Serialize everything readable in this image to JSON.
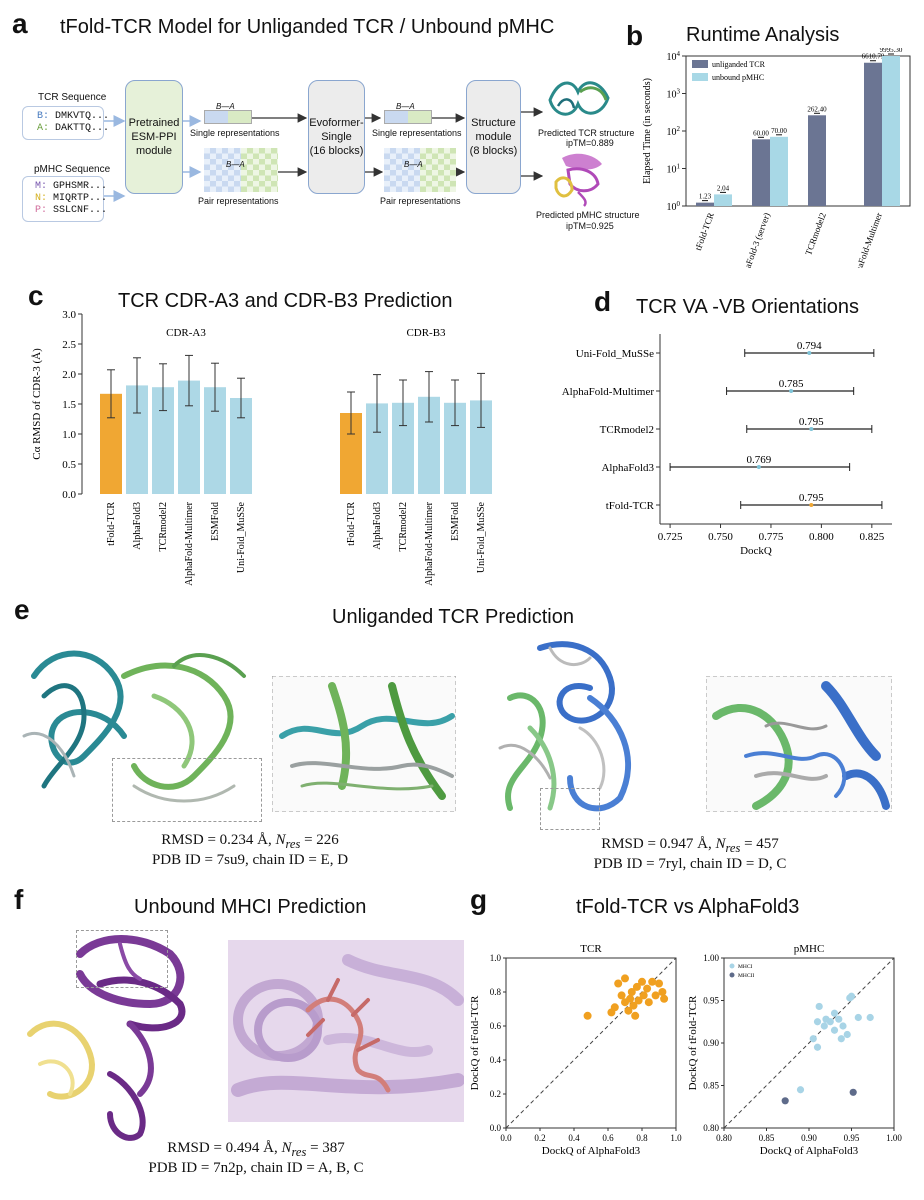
{
  "panels": {
    "a": {
      "letter": "a",
      "title": "tFold-TCR Model for Unliganded TCR / Unbound pMHC"
    },
    "b": {
      "letter": "b",
      "title": "Runtime Analysis"
    },
    "c": {
      "letter": "c",
      "title": "TCR CDR-A3 and CDR-B3 Prediction"
    },
    "d": {
      "letter": "d",
      "title": "TCR VA -VB Orientations"
    },
    "e": {
      "letter": "e",
      "title": "Unliganded TCR Prediction"
    },
    "f": {
      "letter": "f",
      "title": "Unbound MHCI Prediction"
    },
    "g": {
      "letter": "g",
      "title": "tFold-TCR vs AlphaFold3"
    }
  },
  "diagram": {
    "tcr_seq_label": "TCR Sequence",
    "tcr_seq_lines": [
      {
        "chain": "B:",
        "seq": "DMKVTQ..."
      },
      {
        "chain": "A:",
        "seq": "DAKTTQ..."
      }
    ],
    "pmhc_seq_label": "pMHC Sequence",
    "pmhc_seq_lines": [
      {
        "chain": "M:",
        "seq": "GPHSMR..."
      },
      {
        "chain": "N:",
        "seq": "MIQRTP..."
      },
      {
        "chain": "P:",
        "seq": "SSLCNF..."
      }
    ],
    "esm_box": "Pretrained\nESM-PPI\nmodule",
    "evo_box": "Evoformer-\nSingle\n(16 blocks)",
    "struct_box": "Structure\nmodule\n(8 blocks)",
    "single_rep": "Single representations",
    "pair_rep": "Pair representations",
    "single_rep2": "Single representations",
    "pair_rep2": "Pair representations",
    "ba_label": "B—A",
    "pred_tcr": "Predicted TCR structure",
    "pred_tcr_iptm": "ipTM=0.889",
    "pred_pmhc": "Predicted pMHC structure",
    "pred_pmhc_iptm": "ipTM=0.925"
  },
  "captions": {
    "e1_line1_prefix": "RMSD = 0.234 Å, ",
    "e1_nres": "N",
    "e1_nres_sub": "res",
    "e1_nres_val": " = 226",
    "e1_line2": "PDB ID = 7su9, chain ID = E, D",
    "e2_line1_prefix": "RMSD = 0.947 Å, ",
    "e2_nres_val": " = 457",
    "e2_line2": "PDB ID = 7ryl, chain ID = D, C",
    "f_line1_prefix": "RMSD = 0.494 Å, ",
    "f_nres_val": " = 387",
    "f_line2": "PDB ID = 7n2p, chain ID = A, B, C"
  },
  "colors": {
    "unliganded_tcr": "#6b7593",
    "unbound_pmhc": "#a8d8e6",
    "tfold_bar": "#f0a733",
    "other_bar": "#add8e6",
    "tcr_scatter": "#f0a020",
    "mhci": "#a8d4e6",
    "mhcii": "#5e6b8a"
  },
  "chart_data": [
    {
      "id": "b",
      "type": "bar",
      "ylabel": "Elapsed Time (in seconds)",
      "yscale": "log",
      "ylim": [
        1,
        10000
      ],
      "yticks": [
        "10^0",
        "10^1",
        "10^2",
        "10^3",
        "10^4"
      ],
      "categories": [
        "tFold-TCR",
        "AlphaFold-3 (server)",
        "TCRmodel2",
        "AlphaFold-Multimer"
      ],
      "series": [
        {
          "name": "unliganded TCR",
          "values": [
            1.23,
            60.0,
            262.4,
            6610.79
          ],
          "labels": [
            "1.23",
            "60.00",
            "262.40",
            "6610.79"
          ]
        },
        {
          "name": "unbound pMHC",
          "values": [
            2.04,
            70.0,
            null,
            9995.3
          ],
          "labels": [
            "2.04",
            "70.00",
            "",
            "9995.30"
          ]
        }
      ],
      "legend": "top-left"
    },
    {
      "id": "c",
      "type": "bar",
      "ylabel": "Cα RMSD of CDR-3 (Å)",
      "ylim": [
        0,
        3.0
      ],
      "yticks": [
        "0.0",
        "0.5",
        "1.0",
        "1.5",
        "2.0",
        "2.5",
        "3.0"
      ],
      "groups": [
        {
          "name": "CDR-A3",
          "categories": [
            "tFold-TCR",
            "AlphaFold3",
            "TCRmodel2",
            "AlphaFold-Multimer",
            "ESMFold",
            "Uni-Fold_MuSSe"
          ],
          "values": [
            1.67,
            1.81,
            1.78,
            1.89,
            1.78,
            1.6
          ],
          "err": [
            0.4,
            0.46,
            0.39,
            0.42,
            0.4,
            0.33
          ]
        },
        {
          "name": "CDR-B3",
          "categories": [
            "tFold-TCR",
            "AlphaFold3",
            "TCRmodel2",
            "AlphaFold-Multimer",
            "ESMFold",
            "Uni-Fold_MuSSe"
          ],
          "values": [
            1.35,
            1.51,
            1.52,
            1.62,
            1.52,
            1.56
          ],
          "err": [
            0.35,
            0.48,
            0.38,
            0.42,
            0.38,
            0.45
          ]
        }
      ]
    },
    {
      "id": "d",
      "type": "scatter",
      "xlabel": "DockQ",
      "xlim": [
        0.72,
        0.835
      ],
      "xticks": [
        "0.725",
        "0.750",
        "0.775",
        "0.800",
        "0.825"
      ],
      "categories": [
        "Uni-Fold_MuSSe",
        "AlphaFold-Multimer",
        "TCRmodel2",
        "AlphaFold3",
        "tFold-TCR"
      ],
      "values": [
        0.794,
        0.785,
        0.795,
        0.769,
        0.795
      ],
      "labels": [
        "0.794",
        "0.785",
        "0.795",
        "0.769",
        "0.795"
      ],
      "ci": [
        [
          0.762,
          0.826
        ],
        [
          0.753,
          0.816
        ],
        [
          0.763,
          0.825
        ],
        [
          0.725,
          0.814
        ],
        [
          0.76,
          0.83
        ]
      ]
    },
    {
      "id": "g1",
      "type": "scatter",
      "title": "TCR",
      "xlabel": "DockQ of AlphaFold3",
      "ylabel": "DockQ of tFold-TCR",
      "xlim": [
        0,
        1
      ],
      "ylim": [
        0,
        1
      ],
      "xticks": [
        "0.0",
        "0.2",
        "0.4",
        "0.6",
        "0.8",
        "1.0"
      ],
      "yticks": [
        "0.0",
        "0.2",
        "0.4",
        "0.6",
        "0.8",
        "1.0"
      ],
      "points": [
        [
          0.48,
          0.66
        ],
        [
          0.62,
          0.68
        ],
        [
          0.64,
          0.71
        ],
        [
          0.66,
          0.85
        ],
        [
          0.68,
          0.78
        ],
        [
          0.7,
          0.74
        ],
        [
          0.7,
          0.88
        ],
        [
          0.72,
          0.69
        ],
        [
          0.73,
          0.76
        ],
        [
          0.74,
          0.8
        ],
        [
          0.75,
          0.72
        ],
        [
          0.76,
          0.66
        ],
        [
          0.77,
          0.83
        ],
        [
          0.78,
          0.75
        ],
        [
          0.8,
          0.86
        ],
        [
          0.81,
          0.78
        ],
        [
          0.83,
          0.82
        ],
        [
          0.84,
          0.74
        ],
        [
          0.86,
          0.86
        ],
        [
          0.88,
          0.78
        ],
        [
          0.9,
          0.85
        ],
        [
          0.92,
          0.8
        ],
        [
          0.93,
          0.76
        ]
      ]
    },
    {
      "id": "g2",
      "type": "scatter",
      "title": "pMHC",
      "xlabel": "DockQ of AlphaFold3",
      "ylabel": "DockQ of tFold-TCR",
      "xlim": [
        0.8,
        1.0
      ],
      "ylim": [
        0.8,
        1.0
      ],
      "xticks": [
        "0.80",
        "0.85",
        "0.90",
        "0.95",
        "1.00"
      ],
      "yticks": [
        "0.80",
        "0.85",
        "0.90",
        "0.95",
        "1.00"
      ],
      "series": [
        {
          "name": "MHCI",
          "points": [
            [
              0.89,
              0.845
            ],
            [
              0.905,
              0.905
            ],
            [
              0.91,
              0.895
            ],
            [
              0.912,
              0.943
            ],
            [
              0.918,
              0.92
            ],
            [
              0.92,
              0.928
            ],
            [
              0.925,
              0.925
            ],
            [
              0.93,
              0.915
            ],
            [
              0.93,
              0.935
            ],
            [
              0.935,
              0.928
            ],
            [
              0.938,
              0.905
            ],
            [
              0.94,
              0.92
            ],
            [
              0.945,
              0.91
            ],
            [
              0.948,
              0.953
            ],
            [
              0.95,
              0.955
            ],
            [
              0.958,
              0.93
            ],
            [
              0.972,
              0.93
            ],
            [
              0.91,
              0.925
            ]
          ]
        },
        {
          "name": "MHCII",
          "points": [
            [
              0.872,
              0.832
            ],
            [
              0.952,
              0.842
            ]
          ]
        }
      ],
      "legend": "top-left"
    }
  ]
}
